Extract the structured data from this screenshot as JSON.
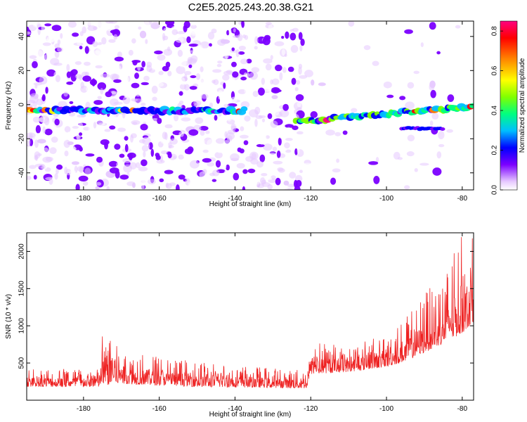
{
  "title": "C2E5.2025.243.20.38.G21",
  "chart_data": [
    {
      "type": "heatmap",
      "xlabel": "Height of straight line (km)",
      "ylabel": "Frequency (Hz)",
      "xlim": [
        -195,
        -77
      ],
      "ylim": [
        -50,
        49
      ],
      "xticks": [
        -180,
        -160,
        -140,
        -120,
        -100,
        -80
      ],
      "yticks": [
        -40,
        -20,
        0,
        20,
        40
      ],
      "colorbar": {
        "label": "Normalized spectral amplitude",
        "range": [
          0,
          0.85
        ],
        "ticks": [
          0.0,
          0.2,
          0.4,
          0.6,
          0.8
        ],
        "colormap": [
          "#ffffff",
          "#e6c8ff",
          "#7b00ff",
          "#0000ff",
          "#00bfff",
          "#00ff80",
          "#80ff00",
          "#ffff00",
          "#ff8000",
          "#ff0000",
          "#ff0080"
        ]
      },
      "features": [
        {
          "name": "main-trace-left",
          "x": [
            -195,
            -137
          ],
          "freq": -3.5,
          "peak_amplitude": 0.85
        },
        {
          "name": "main-trace-right",
          "x": [
            -124,
            -77
          ],
          "freq_start": -10,
          "freq_end": -1,
          "peak_amplitude": 0.85
        },
        {
          "name": "secondary-trace",
          "x": [
            -96,
            -85
          ],
          "freq": -14,
          "peak_amplitude": 0.3
        }
      ]
    },
    {
      "type": "line",
      "xlabel": "Height of straight line (km)",
      "ylabel": "SNR (10 * v/v)",
      "xlim": [
        -195,
        -77
      ],
      "ylim": [
        0,
        2250
      ],
      "xticks": [
        -180,
        -160,
        -140,
        -120,
        -100,
        -80
      ],
      "yticks": [
        500,
        1000,
        1500,
        2000
      ],
      "color": "#ee2222",
      "envelope": {
        "x": [
          -195,
          -176,
          -175,
          -170,
          -150,
          -121,
          -120,
          -110,
          -100,
          -95,
          -90,
          -85,
          -80,
          -77
        ],
        "y_base": [
          180,
          180,
          200,
          220,
          180,
          160,
          350,
          380,
          450,
          520,
          640,
          760,
          900,
          1050
        ],
        "y_peak": [
          450,
          420,
          920,
          680,
          520,
          400,
          800,
          750,
          900,
          1100,
          1450,
          1650,
          2250,
          2200
        ]
      }
    }
  ]
}
